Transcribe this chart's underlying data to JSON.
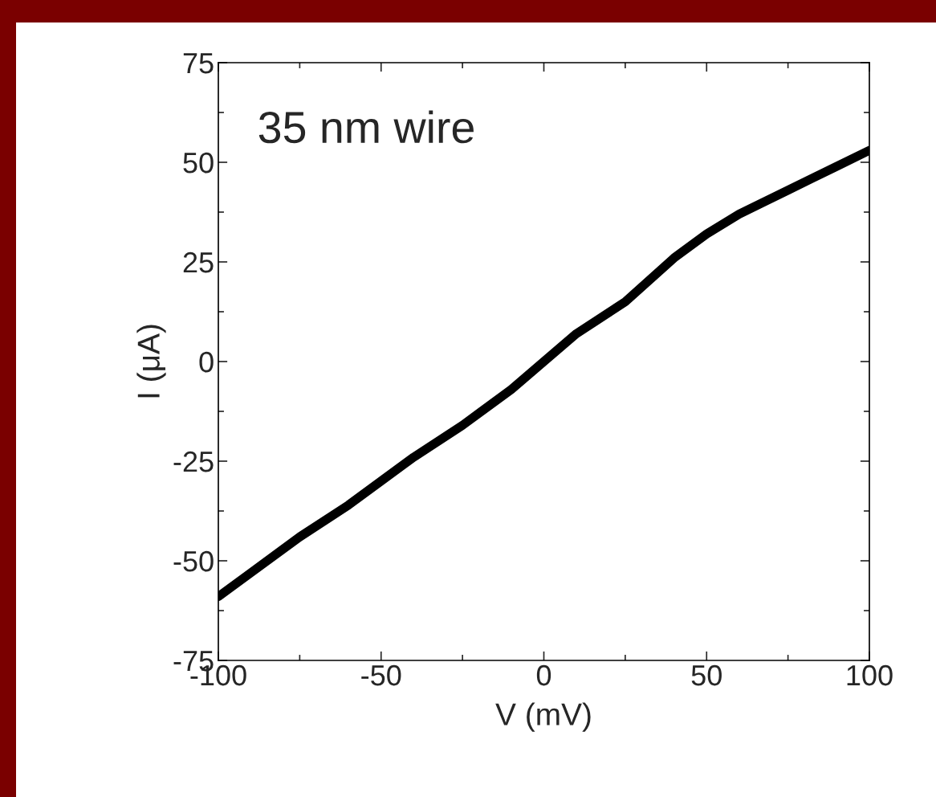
{
  "chart_data": {
    "type": "line",
    "xlabel": "V (mV)",
    "ylabel": "I (μA)",
    "annotations": [
      "35 nm wire"
    ],
    "x": [
      -100,
      -90,
      -75,
      -60,
      -50,
      -40,
      -25,
      -10,
      0,
      10,
      25,
      40,
      50,
      60,
      75,
      90,
      100
    ],
    "series": [
      {
        "color": "#000000",
        "values": [
          -59,
          -53,
          -44,
          -36,
          -30,
          -24,
          -16,
          -7,
          0,
          7,
          15,
          26,
          32,
          37,
          43,
          49,
          53
        ]
      }
    ],
    "xlim": [
      -100,
      100
    ],
    "ylim": [
      -75,
      75
    ],
    "xticks": [
      -100,
      -50,
      0,
      50,
      100
    ],
    "yticks": [
      -75,
      -50,
      -25,
      0,
      25,
      50,
      75
    ],
    "grid": false,
    "legend": false,
    "marker": "none",
    "line_style": "solid"
  }
}
